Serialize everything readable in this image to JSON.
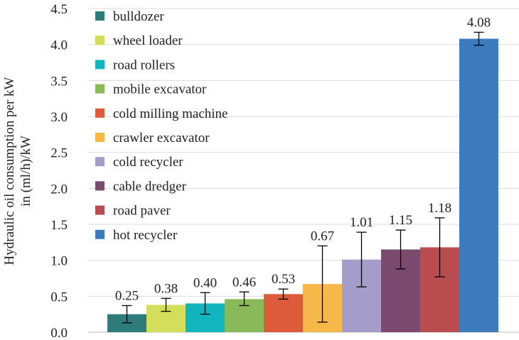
{
  "chart_data": {
    "type": "bar",
    "title": "",
    "xlabel": "",
    "ylabel_lines": [
      "Hydraulic oil consumption per kW",
      "in (ml/h)/kW"
    ],
    "ylim": [
      0,
      4.5
    ],
    "yticks": [
      "0.0",
      "0.5",
      "1.0",
      "1.5",
      "2.0",
      "2.5",
      "3.0",
      "3.5",
      "4.0",
      "4.5"
    ],
    "grid": true,
    "legend_position": "top-left",
    "series": [
      {
        "name": "bulldozer",
        "value": 0.25,
        "label": "0.25",
        "err_low": 0.13,
        "err_high": 0.37,
        "color": "#2e7b7b"
      },
      {
        "name": "wheel loader",
        "value": 0.38,
        "label": "0.38",
        "err_low": 0.29,
        "err_high": 0.47,
        "color": "#d3df5a"
      },
      {
        "name": "road rollers",
        "value": 0.4,
        "label": "0.40",
        "err_low": 0.25,
        "err_high": 0.55,
        "color": "#12b5be"
      },
      {
        "name": "mobile excavator",
        "value": 0.46,
        "label": "0.46",
        "err_low": 0.37,
        "err_high": 0.56,
        "color": "#8ab95a"
      },
      {
        "name": "cold milling machine",
        "value": 0.53,
        "label": "0.53",
        "err_low": 0.46,
        "err_high": 0.6,
        "color": "#dc5b3b"
      },
      {
        "name": "crawler excavator",
        "value": 0.67,
        "label": "0.67",
        "err_low": 0.14,
        "err_high": 1.2,
        "color": "#f7b84a"
      },
      {
        "name": "cold recycler",
        "value": 1.01,
        "label": "1.01",
        "err_low": 0.63,
        "err_high": 1.39,
        "color": "#a59dc9"
      },
      {
        "name": "cable dredger",
        "value": 1.15,
        "label": "1.15",
        "err_low": 0.88,
        "err_high": 1.42,
        "color": "#7b4a6f"
      },
      {
        "name": "road paver",
        "value": 1.18,
        "label": "1.18",
        "err_low": 0.77,
        "err_high": 1.59,
        "color": "#b84c4e"
      },
      {
        "name": "hot recycler",
        "value": 4.08,
        "label": "4.08",
        "err_low": 3.99,
        "err_high": 4.17,
        "color": "#3d7bbd"
      }
    ]
  }
}
